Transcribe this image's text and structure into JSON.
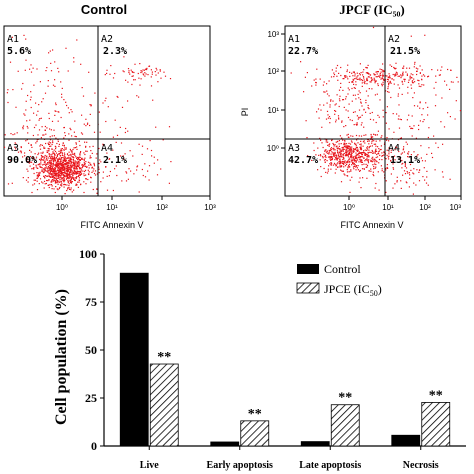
{
  "colors": {
    "dots": "#e8141b",
    "axis": "#000000",
    "quadrant_line": "#000000",
    "bar_control": "#000000",
    "bar_jpcf_hatch": "#000000"
  },
  "flow_panels": [
    {
      "title": "Control",
      "xlabel": "FITC Annexin V",
      "ylabel": "",
      "x_ticks": [
        "10⁰",
        "10¹",
        "10²",
        "10³"
      ],
      "y_ticks": [],
      "quadrants": [
        {
          "id": "A1",
          "percent": "5.6%"
        },
        {
          "id": "A2",
          "percent": "2.3%"
        },
        {
          "id": "A3",
          "percent": "90.0%"
        },
        {
          "id": "A4",
          "percent": "2.1%"
        }
      ]
    },
    {
      "title": "JPCF (IC₅₀)",
      "xlabel": "FITC Annexin V",
      "ylabel": "PI",
      "x_ticks": [
        "10⁰",
        "10¹",
        "10²",
        "10³"
      ],
      "y_ticks": [
        "10³",
        "10²",
        "10¹",
        "10⁰"
      ],
      "quadrants": [
        {
          "id": "A1",
          "percent": "22.7%"
        },
        {
          "id": "A2",
          "percent": "21.5%"
        },
        {
          "id": "A3",
          "percent": "42.7%"
        },
        {
          "id": "A4",
          "percent": "13.1%"
        }
      ]
    }
  ],
  "chart_data": {
    "type": "bar",
    "title": "",
    "ylabel": "Cell population (%)",
    "xlabel": "",
    "ylim": [
      0,
      100
    ],
    "y_ticks": [
      0,
      25,
      50,
      75,
      100
    ],
    "categories": [
      "Live",
      "Early apoptosis",
      "Late apoptosis",
      "Necrosis"
    ],
    "series": [
      {
        "name": "Control",
        "values": [
          90.0,
          2.1,
          2.3,
          5.6
        ],
        "style": "solid"
      },
      {
        "name": "JPCE (IC50)",
        "values": [
          42.7,
          13.1,
          21.5,
          22.7
        ],
        "style": "hatch"
      }
    ],
    "legend": {
      "position": "top-right",
      "items": [
        {
          "label": "Control",
          "sub": ""
        },
        {
          "label": "JPCE (IC",
          "sub": "50",
          "close": ")"
        }
      ]
    },
    "significance_marks": [
      "**",
      "**",
      "**",
      "**"
    ]
  }
}
